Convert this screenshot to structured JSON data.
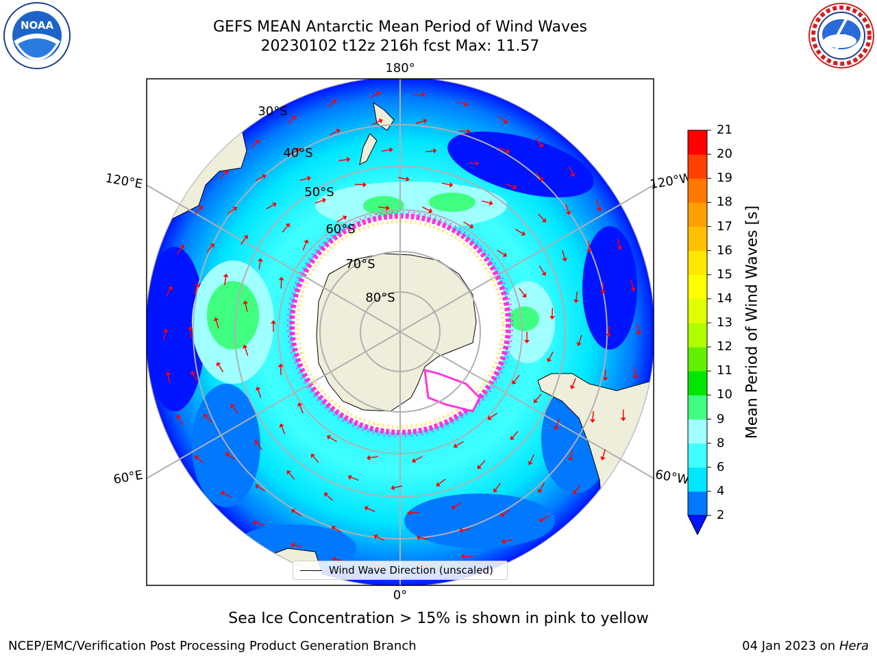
{
  "title": {
    "line1": "GEFS MEAN Antarctic Mean Period of Wind Waves",
    "line2": "20230102 t12z 216h fcst   Max: 11.57"
  },
  "logos": {
    "noaa": {
      "text": "NOAA",
      "icon": "noaa-logo-icon"
    },
    "nws": {
      "text": "NATIONAL WEATHER SERVICE",
      "icon": "nws-logo-icon"
    }
  },
  "map": {
    "projection": "south-polar-stereographic",
    "longitude_labels": {
      "top": "180°",
      "bottom": "0°",
      "left_upper": "120°E",
      "left_lower": "60°E",
      "right_upper": "120°W",
      "right_lower": "60°W"
    },
    "latitude_labels": [
      "30°S",
      "40°S",
      "50°S",
      "60°S",
      "70°S",
      "80°S"
    ],
    "legend_label": "Wind Wave Direction (unscaled)",
    "colors": {
      "land": "#efeedb",
      "ice_edge_pink": "#ff33dd",
      "ice_edge_yellow": "#ffee88",
      "arrow": "#ff0000"
    }
  },
  "colorbar": {
    "title": "Mean Period of Wind Waves [s]",
    "ticks": [
      "2",
      "4",
      "6",
      "8",
      "9",
      "10",
      "11",
      "12",
      "13",
      "14",
      "15",
      "16",
      "17",
      "18",
      "19",
      "20",
      "21"
    ],
    "colors": [
      "#0014ff",
      "#0078ff",
      "#00e6ff",
      "#40ffff",
      "#a0ffff",
      "#40ff80",
      "#00e600",
      "#60f000",
      "#b0ff00",
      "#e0ff00",
      "#ffff00",
      "#ffe800",
      "#ffc000",
      "#ffa000",
      "#ff7800",
      "#ff4000",
      "#ff0000"
    ]
  },
  "notes": {
    "sea_ice": "Sea Ice Concentration > 15% is shown in pink to yellow",
    "credit_left": "NCEP/EMC/Verification Post Processing Product Generation Branch",
    "credit_date": "04 Jan 2023 on ",
    "credit_machine": "Hera"
  }
}
